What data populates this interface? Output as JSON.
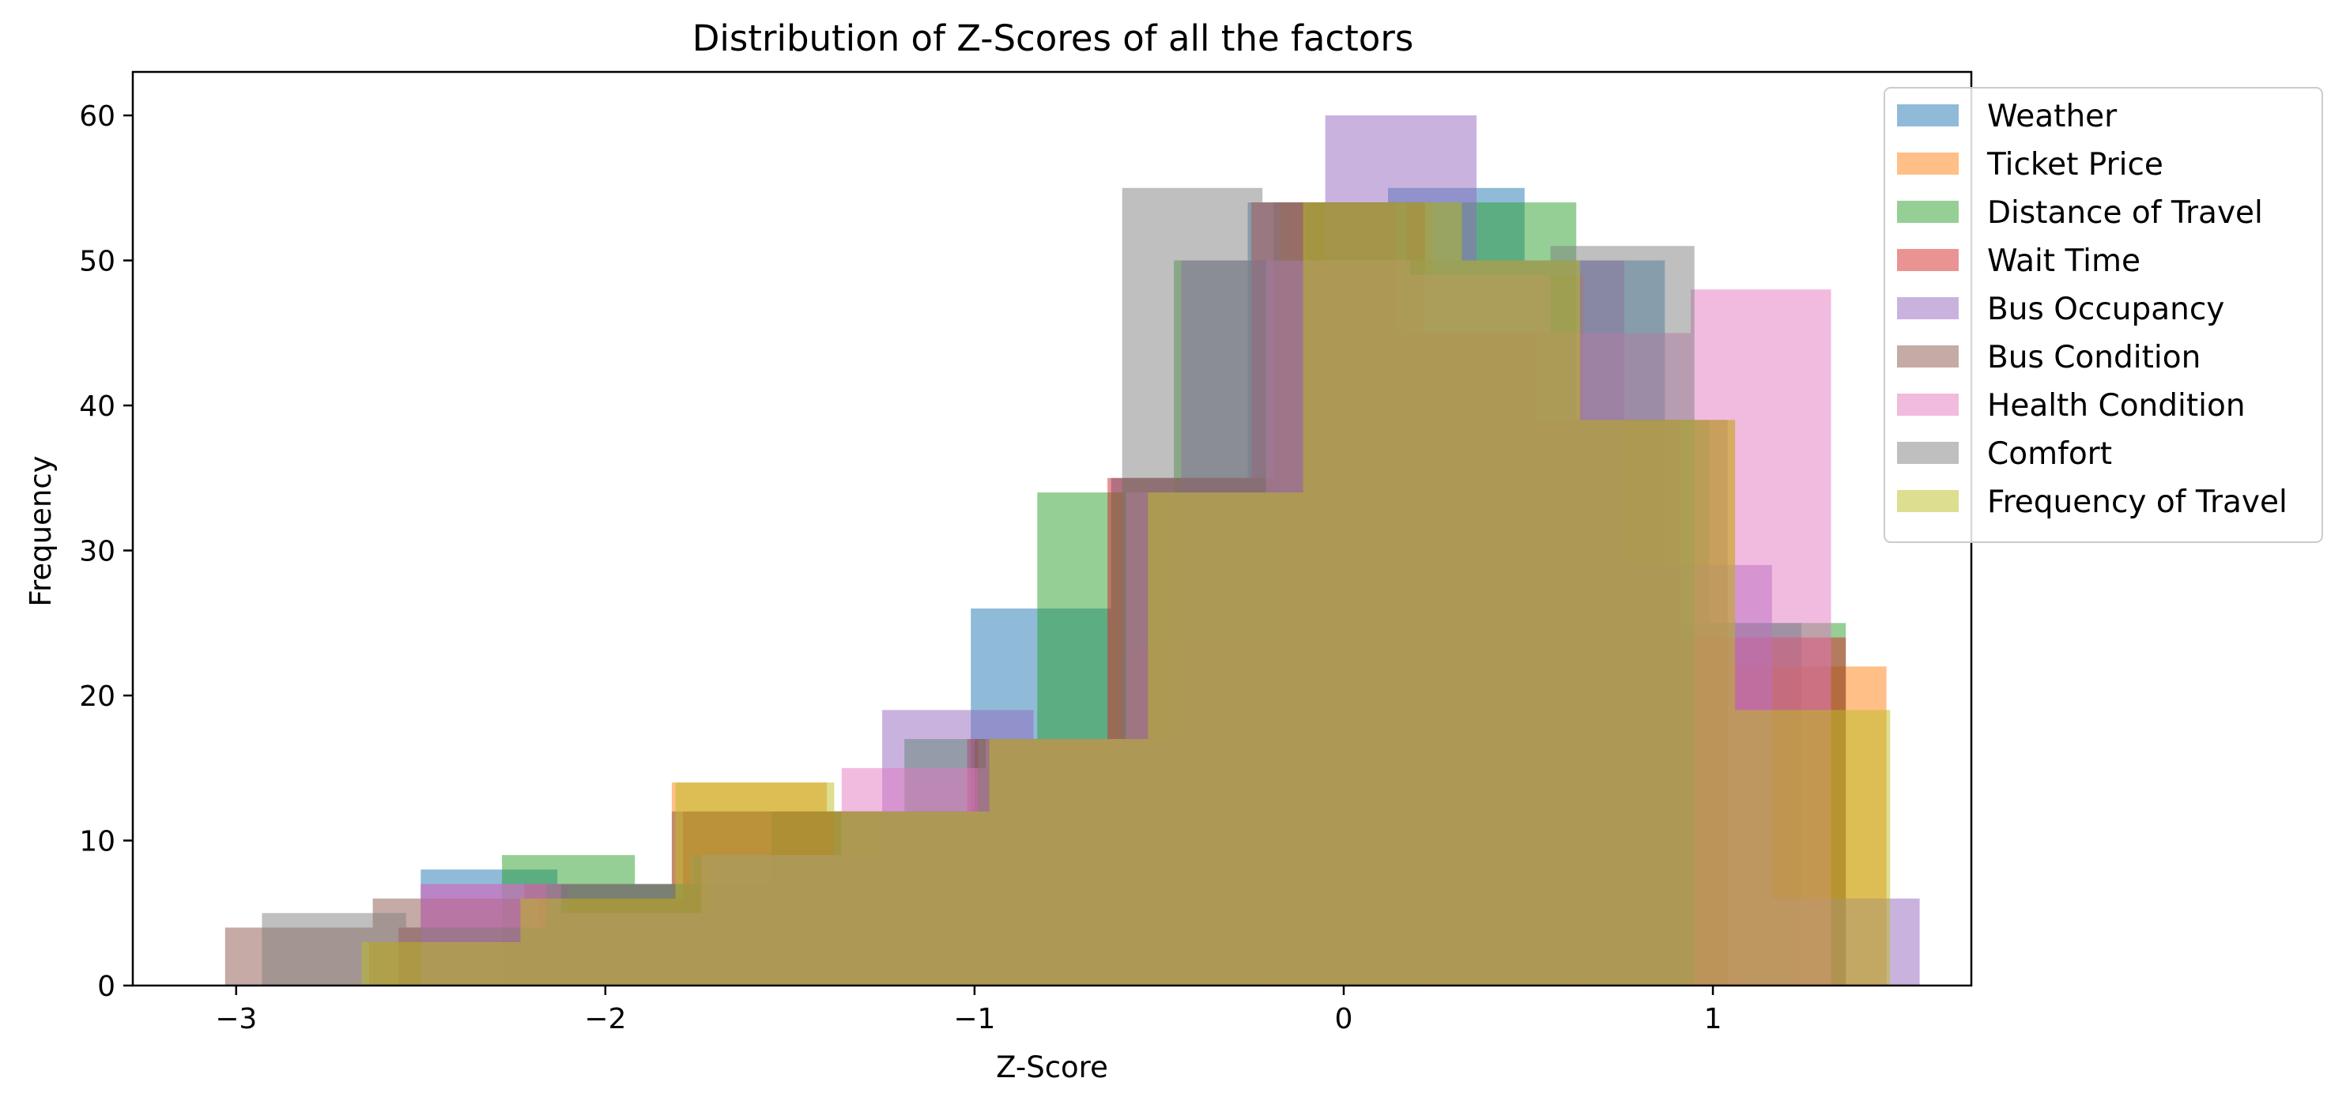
{
  "chart_data": {
    "type": "bar",
    "title": "Distribution of Z-Scores of all the factors",
    "xlabel": "Z-Score",
    "ylabel": "Frequency",
    "xlim": [
      -3.28,
      1.7
    ],
    "ylim": [
      0,
      63
    ],
    "xticks": [
      -3,
      -2,
      -1,
      0,
      1
    ],
    "xtick_labels": [
      "−3",
      "−2",
      "−1",
      "0",
      "1"
    ],
    "yticks": [
      0,
      10,
      20,
      30,
      40,
      50,
      60
    ],
    "ytick_labels": [
      "0",
      "10",
      "20",
      "30",
      "40",
      "50",
      "60"
    ],
    "grid": false,
    "legend_position": "top-right",
    "bar_alpha": 0.5,
    "series": [
      {
        "name": "Weather",
        "color": "#1f77b4",
        "bins": [
          [
            -2.5,
            -2.13,
            8
          ],
          [
            -2.13,
            -1.76,
            7
          ],
          [
            -1.76,
            -1.38,
            9
          ],
          [
            -1.38,
            -1.01,
            12
          ],
          [
            -1.01,
            -0.63,
            26
          ],
          [
            -0.63,
            -0.26,
            35
          ],
          [
            -0.26,
            0.12,
            54
          ],
          [
            0.12,
            0.49,
            55
          ],
          [
            0.49,
            0.87,
            50
          ],
          [
            0.87,
            1.24,
            25
          ]
        ]
      },
      {
        "name": "Ticket Price",
        "color": "#ff7f0e",
        "bins": [
          [
            -2.64,
            -2.23,
            3
          ],
          [
            -2.23,
            -1.82,
            6
          ],
          [
            -1.82,
            -1.4,
            14
          ],
          [
            -1.4,
            -0.99,
            12
          ],
          [
            -0.99,
            -0.58,
            17
          ],
          [
            -0.58,
            -0.17,
            23
          ],
          [
            -0.17,
            0.24,
            54
          ],
          [
            0.24,
            0.65,
            49
          ],
          [
            0.65,
            1.06,
            39
          ],
          [
            1.06,
            1.47,
            22
          ]
        ]
      },
      {
        "name": "Distance of Travel",
        "color": "#2ca02c",
        "bins": [
          [
            -2.28,
            -1.92,
            9
          ],
          [
            -1.92,
            -1.55,
            7
          ],
          [
            -1.55,
            -1.19,
            12
          ],
          [
            -1.19,
            -0.83,
            17
          ],
          [
            -0.83,
            -0.46,
            34
          ],
          [
            -0.46,
            -0.1,
            50
          ],
          [
            -0.1,
            0.27,
            54
          ],
          [
            0.27,
            0.63,
            54
          ],
          [
            0.63,
            0.99,
            39
          ],
          [
            0.99,
            1.36,
            25
          ]
        ]
      },
      {
        "name": "Wait Time",
        "color": "#d62728",
        "bins": [
          [
            -2.56,
            -2.18,
            4
          ],
          [
            -2.18,
            -1.79,
            6
          ],
          [
            -1.79,
            -1.41,
            12
          ],
          [
            -1.41,
            -1.02,
            12
          ],
          [
            -1.02,
            -0.64,
            17
          ],
          [
            -0.64,
            -0.25,
            35
          ],
          [
            -0.25,
            0.14,
            54
          ],
          [
            0.14,
            0.52,
            45
          ],
          [
            0.52,
            0.91,
            39
          ],
          [
            0.91,
            1.36,
            24
          ]
        ]
      },
      {
        "name": "Bus Occupancy",
        "color": "#9467bd",
        "bins": [
          [
            -2.5,
            -2.1,
            7
          ],
          [
            -2.1,
            -1.7,
            5
          ],
          [
            -1.7,
            -1.25,
            9
          ],
          [
            -1.25,
            -0.84,
            19
          ],
          [
            -0.84,
            -0.44,
            17
          ],
          [
            -0.44,
            -0.05,
            50
          ],
          [
            -0.05,
            0.36,
            60
          ],
          [
            0.36,
            0.76,
            50
          ],
          [
            0.76,
            1.16,
            29
          ],
          [
            1.16,
            1.56,
            6
          ]
        ]
      },
      {
        "name": "Bus Condition",
        "color": "#8c564b",
        "bins": [
          [
            -3.03,
            -2.63,
            4
          ],
          [
            -2.63,
            -2.22,
            6
          ],
          [
            -2.22,
            -1.82,
            7
          ],
          [
            -1.82,
            -1.41,
            12
          ],
          [
            -1.41,
            -1.0,
            12
          ],
          [
            -1.0,
            -0.6,
            17
          ],
          [
            -0.6,
            -0.19,
            35
          ],
          [
            -0.19,
            0.22,
            54
          ],
          [
            0.22,
            0.63,
            45
          ],
          [
            0.63,
            1.04,
            39
          ]
        ]
      },
      {
        "name": "Health Condition",
        "color": "#e377c2",
        "bins": [
          [
            -2.5,
            -2.12,
            7
          ],
          [
            -2.12,
            -1.74,
            5
          ],
          [
            -1.74,
            -1.36,
            9
          ],
          [
            -1.36,
            -0.97,
            15
          ],
          [
            -0.97,
            -0.59,
            17
          ],
          [
            -0.59,
            -0.21,
            34
          ],
          [
            -0.21,
            0.18,
            50
          ],
          [
            0.18,
            0.56,
            49
          ],
          [
            0.56,
            0.94,
            45
          ],
          [
            0.94,
            1.32,
            48
          ]
        ]
      },
      {
        "name": "Comfort",
        "color": "#7f7f7f",
        "bins": [
          [
            -2.93,
            -2.54,
            5
          ],
          [
            -2.54,
            -2.16,
            4
          ],
          [
            -2.16,
            -1.77,
            7
          ],
          [
            -1.77,
            -1.38,
            9
          ],
          [
            -1.38,
            -0.99,
            12
          ],
          [
            -0.99,
            -0.6,
            17
          ],
          [
            -0.6,
            -0.22,
            55
          ],
          [
            -0.22,
            0.17,
            54
          ],
          [
            0.17,
            0.56,
            50
          ],
          [
            0.56,
            0.95,
            51
          ]
        ]
      },
      {
        "name": "Frequency of Travel",
        "color": "#bcbd22",
        "bins": [
          [
            -2.66,
            -2.23,
            3
          ],
          [
            -2.23,
            -1.81,
            6
          ],
          [
            -1.81,
            -1.38,
            14
          ],
          [
            -1.38,
            -0.96,
            12
          ],
          [
            -0.96,
            -0.53,
            17
          ],
          [
            -0.53,
            -0.11,
            34
          ],
          [
            -0.11,
            0.32,
            54
          ],
          [
            0.32,
            0.64,
            50
          ],
          [
            0.64,
            1.06,
            39
          ],
          [
            1.06,
            1.48,
            19
          ]
        ]
      }
    ]
  }
}
